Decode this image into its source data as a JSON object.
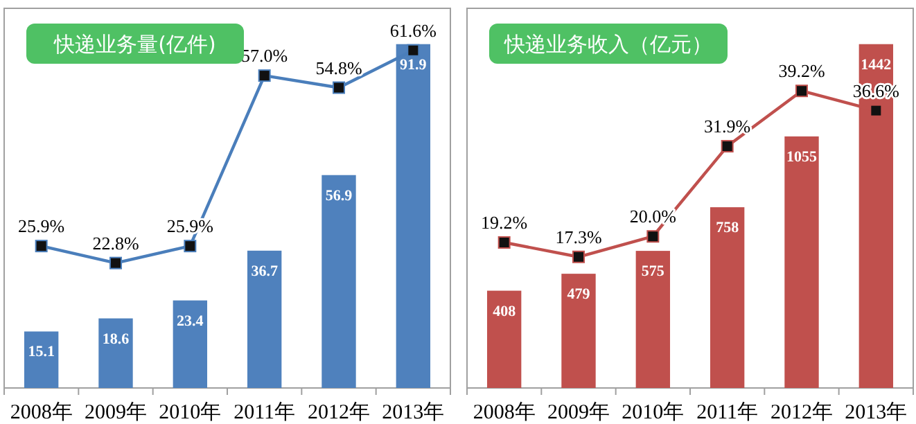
{
  "chart_data": [
    {
      "type": "bar",
      "title": "快递业务量(亿件)",
      "categories": [
        "2008年",
        "2009年",
        "2010年",
        "2011年",
        "2012年",
        "2013年"
      ],
      "marker": "square",
      "series": [
        {
          "color": "#4f81bd",
          "values": [
            15.1,
            18.6,
            23.4,
            36.7,
            56.9,
            91.9
          ],
          "value_labels": [
            "15.1",
            "18.6",
            "23.4",
            "36.7",
            "56.9",
            "91.9"
          ]
        },
        {
          "type": "line",
          "axis": "y2",
          "color": "#4a7ebb",
          "values": [
            25.9,
            22.8,
            25.9,
            57.0,
            54.8,
            61.6
          ],
          "value_labels": [
            "25.9%",
            "22.8%",
            "25.9%",
            "57.0%",
            "54.8%",
            "61.6%"
          ]
        }
      ]
    },
    {
      "type": "bar",
      "title": "快递业务收入（亿元）",
      "categories": [
        "2008年",
        "2009年",
        "2010年",
        "2011年",
        "2012年",
        "2013年"
      ],
      "marker": "square",
      "series": [
        {
          "color": "#c0504d",
          "values": [
            408,
            479,
            575,
            758,
            1055,
            1442
          ],
          "value_labels": [
            "408",
            "479",
            "575",
            "758",
            "1055",
            "1442"
          ]
        },
        {
          "type": "line",
          "axis": "y2",
          "color": "#c0504d",
          "values": [
            19.2,
            17.3,
            20.0,
            31.9,
            39.2,
            36.6
          ],
          "value_labels": [
            "19.2%",
            "17.3%",
            "20.0%",
            "31.9%",
            "39.2%",
            "36.6%"
          ]
        }
      ]
    }
  ]
}
